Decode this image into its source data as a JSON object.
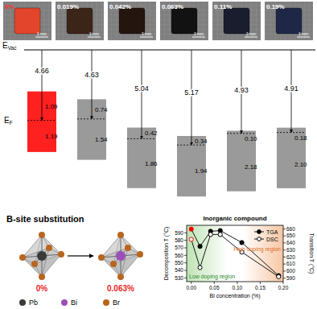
{
  "crystals": {
    "labels": [
      "0%",
      "0.019%",
      "0.042%",
      "0.063%",
      "0.11%",
      "0.19%"
    ],
    "colors": [
      "#e2452b",
      "#3b2418",
      "#24160f",
      "#121212",
      "#1a1d2e",
      "#1f2747"
    ],
    "label_colors": [
      "#ff3030",
      "#ffffff",
      "#ffffff",
      "#ffffff",
      "#ffffff",
      "#ffffff"
    ],
    "scale_bar": "3 mm"
  },
  "energy_diagram": {
    "vacuum_level": {
      "symbol": "E",
      "subscript": "Vac"
    },
    "fermi_level": {
      "symbol": "E",
      "subscript": "F"
    },
    "columns": [
      {
        "work_function": 4.66,
        "above_fermi": 1.09,
        "below_fermi": 1.19,
        "color": "#ff2020"
      },
      {
        "work_function": 4.63,
        "above_fermi": 0.74,
        "below_fermi": 1.54,
        "color": "#9a9a9a"
      },
      {
        "work_function": 5.04,
        "above_fermi": 0.42,
        "below_fermi": 1.86,
        "color": "#9a9a9a"
      },
      {
        "work_function": 5.17,
        "above_fermi": 0.34,
        "below_fermi": 1.94,
        "color": "#9a9a9a"
      },
      {
        "work_function": 4.93,
        "above_fermi": 0.1,
        "below_fermi": 2.18,
        "color": "#9a9a9a"
      },
      {
        "work_function": 4.91,
        "above_fermi": 0.18,
        "below_fermi": 2.1,
        "color": "#9a9a9a"
      }
    ]
  },
  "substitution": {
    "title": "B-site substitution",
    "before_label": "0%",
    "after_label": "0.063%",
    "label_color": "#e8281e",
    "atoms": [
      {
        "name": "Pb",
        "color": "#3a3a3a"
      },
      {
        "name": "Bi",
        "color": "#9b4fb8"
      },
      {
        "name": "Br",
        "color": "#b8651e"
      }
    ]
  },
  "chart_data": {
    "type": "line",
    "title": "Inorganic compound",
    "x_label": "Bi concentration (%)",
    "y_label": "Decomposition T (°C)",
    "y2_label": "Transition T (°C)",
    "x": [
      0,
      0.019,
      0.042,
      0.063,
      0.11,
      0.19
    ],
    "xlim": [
      -0.01,
      0.2
    ],
    "xticks": [
      {
        "value": 0,
        "label": "0.00"
      },
      0.05,
      {
        "value": 0.1,
        "label": "0.10"
      },
      0.15,
      {
        "value": 0.2,
        "label": "0.20"
      }
    ],
    "ylim": [
      525,
      600
    ],
    "yticks": [
      530,
      540,
      550,
      560,
      570,
      580,
      590
    ],
    "y2lim": [
      585,
      665
    ],
    "y2ticks": [
      590,
      600,
      610,
      620,
      630,
      640,
      650,
      660
    ],
    "legend": "upper right",
    "series": [
      {
        "name": "TGA",
        "axis": "y",
        "marker": "filled-circle",
        "color": "#000000",
        "colors": [
          "#ff0000",
          "#000000",
          "#000000",
          "#000000",
          "#000000",
          "#000000"
        ],
        "values": [
          595,
          572,
          592,
          593,
          577,
          533
        ]
      },
      {
        "name": "DSC",
        "axis": "y2",
        "marker": "open-circle",
        "color": "#000000",
        "colors": [
          "#ff0000",
          "#000000",
          "#000000",
          "#000000",
          "#000000",
          "#000000"
        ],
        "values": [
          645,
          605,
          652,
          652,
          627,
          592
        ]
      }
    ],
    "annotations": [
      {
        "text": "Low doping region",
        "color": "#2e8b2e"
      },
      {
        "text": "High doping region",
        "color": "#e06a1e"
      }
    ]
  }
}
